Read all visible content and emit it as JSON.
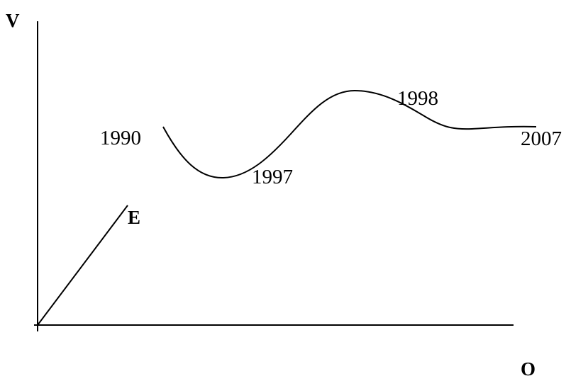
{
  "labels": {
    "y_axis_letter": "V",
    "x_axis_letter": "O",
    "line_label": "E",
    "year_start": "1990",
    "year_trough": "1997",
    "year_peak": "1998",
    "year_end": "2007"
  }
}
